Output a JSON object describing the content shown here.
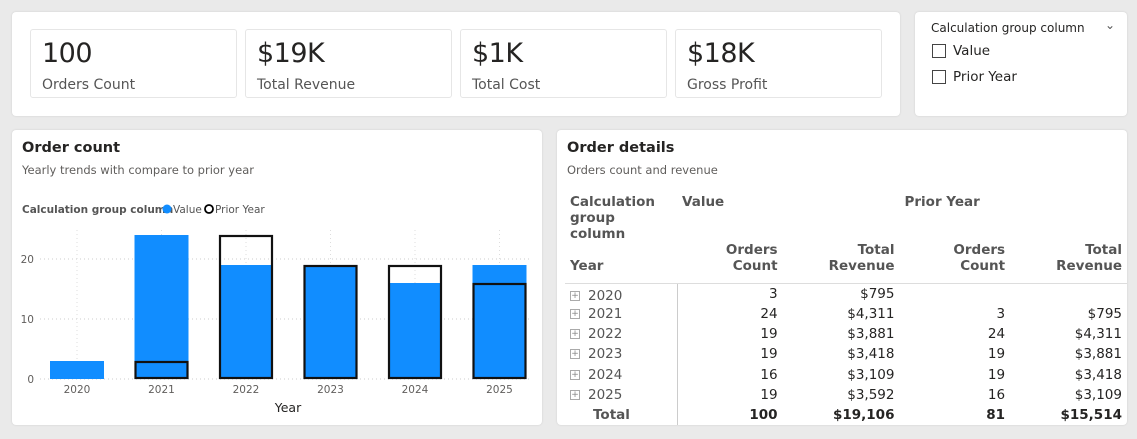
{
  "kpis": [
    {
      "value": "100",
      "label": "Orders Count"
    },
    {
      "value": "$19K",
      "label": "Total Revenue"
    },
    {
      "value": "$1K",
      "label": "Total Cost"
    },
    {
      "value": "$18K",
      "label": "Gross Profit"
    }
  ],
  "slicer": {
    "title": "Calculation group column",
    "options": [
      {
        "label": "Value",
        "checked": false
      },
      {
        "label": "Prior Year",
        "checked": false
      }
    ]
  },
  "order_count": {
    "title": "Order count",
    "subtitle": "Yearly trends with compare to prior year"
  },
  "chart_data": {
    "type": "bar",
    "legend_title": "Calculation group column",
    "legend_position": "top-left",
    "categories": [
      "2020",
      "2021",
      "2022",
      "2023",
      "2024",
      "2025"
    ],
    "series": [
      {
        "name": "Value",
        "values": [
          3,
          24,
          19,
          19,
          16,
          19
        ],
        "color": "#118DFF"
      },
      {
        "name": "Prior Year",
        "values": [
          null,
          3,
          24,
          19,
          19,
          16
        ],
        "color": "#000000",
        "style": "outline"
      }
    ],
    "xlabel": "Year",
    "ylabel": "",
    "ylim": [
      0,
      25
    ],
    "yticks": [
      0,
      10,
      20
    ],
    "grid": true
  },
  "order_details": {
    "title": "Order details",
    "subtitle": "Orders count and revenue",
    "row_header": [
      "Calculation",
      "group column",
      "Year"
    ],
    "groups": [
      "Value",
      "Prior Year"
    ],
    "columns": [
      "Orders Count",
      "Total Revenue",
      "Orders Count",
      "Total Revenue"
    ],
    "rows": [
      {
        "year": "2020",
        "cells": [
          "3",
          "$795",
          "",
          ""
        ]
      },
      {
        "year": "2021",
        "cells": [
          "24",
          "$4,311",
          "3",
          "$795"
        ]
      },
      {
        "year": "2022",
        "cells": [
          "19",
          "$3,881",
          "24",
          "$4,311"
        ]
      },
      {
        "year": "2023",
        "cells": [
          "19",
          "$3,418",
          "19",
          "$3,881"
        ]
      },
      {
        "year": "2024",
        "cells": [
          "16",
          "$3,109",
          "19",
          "$3,418"
        ]
      },
      {
        "year": "2025",
        "cells": [
          "19",
          "$3,592",
          "16",
          "$3,109"
        ]
      }
    ],
    "total": {
      "label": "Total",
      "cells": [
        "100",
        "$19,106",
        "81",
        "$15,514"
      ]
    }
  }
}
